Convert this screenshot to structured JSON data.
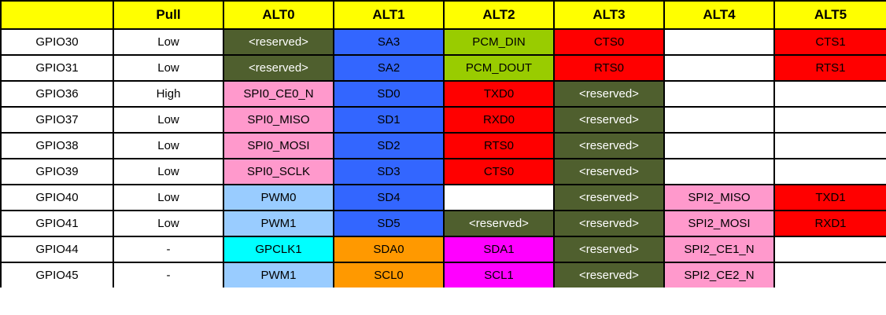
{
  "table": {
    "headers": [
      "",
      "Pull",
      "ALT0",
      "ALT1",
      "ALT2",
      "ALT3",
      "ALT4",
      "ALT5"
    ],
    "rows": [
      {
        "gpio": "GPIO30",
        "pull": "Low",
        "alts": [
          "<reserved>",
          "SA3",
          "PCM_DIN",
          "CTS0",
          "",
          "CTS1"
        ]
      },
      {
        "gpio": "GPIO31",
        "pull": "Low",
        "alts": [
          "<reserved>",
          "SA2",
          "PCM_DOUT",
          "RTS0",
          "",
          "RTS1"
        ]
      },
      {
        "gpio": "GPIO36",
        "pull": "High",
        "alts": [
          "SPI0_CE0_N",
          "SD0",
          "TXD0",
          "<reserved>",
          "",
          ""
        ]
      },
      {
        "gpio": "GPIO37",
        "pull": "Low",
        "alts": [
          "SPI0_MISO",
          "SD1",
          "RXD0",
          "<reserved>",
          "",
          ""
        ]
      },
      {
        "gpio": "GPIO38",
        "pull": "Low",
        "alts": [
          "SPI0_MOSI",
          "SD2",
          "RTS0",
          "<reserved>",
          "",
          ""
        ]
      },
      {
        "gpio": "GPIO39",
        "pull": "Low",
        "alts": [
          "SPI0_SCLK",
          "SD3",
          "CTS0",
          "<reserved>",
          "",
          ""
        ]
      },
      {
        "gpio": "GPIO40",
        "pull": "Low",
        "alts": [
          "PWM0",
          "SD4",
          "",
          "<reserved>",
          "SPI2_MISO",
          "TXD1"
        ]
      },
      {
        "gpio": "GPIO41",
        "pull": "Low",
        "alts": [
          "PWM1",
          "SD5",
          "<reserved>",
          "<reserved>",
          "SPI2_MOSI",
          "RXD1"
        ]
      },
      {
        "gpio": "GPIO44",
        "pull": "-",
        "alts": [
          "GPCLK1",
          "SDA0",
          "SDA1",
          "<reserved>",
          "SPI2_CE1_N",
          ""
        ]
      },
      {
        "gpio": "GPIO45",
        "pull": "-",
        "alts": [
          "PWM1",
          "SCL0",
          "SCL1",
          "<reserved>",
          "SPI2_CE2_N",
          ""
        ]
      }
    ]
  },
  "colors": {
    "header": "#ffff00",
    "reserved": "#4f5f2e",
    "sd": "#3366ff",
    "pcm": "#99cc00",
    "uart": "#ff0000",
    "spi": "#ff99cc",
    "pwm": "#99ccff",
    "gpclk": "#00ffff",
    "i2c0": "#ff9900",
    "i2c1": "#ff00ff",
    "empty": "#ffffff"
  },
  "cell_colors": [
    [
      "reserved",
      "sd",
      "pcm",
      "uart",
      "empty",
      "uart"
    ],
    [
      "reserved",
      "sd",
      "pcm",
      "uart",
      "empty",
      "uart"
    ],
    [
      "spi",
      "sd",
      "uart",
      "reserved",
      "empty",
      "empty"
    ],
    [
      "spi",
      "sd",
      "uart",
      "reserved",
      "empty",
      "empty"
    ],
    [
      "spi",
      "sd",
      "uart",
      "reserved",
      "empty",
      "empty"
    ],
    [
      "spi",
      "sd",
      "uart",
      "reserved",
      "empty",
      "empty"
    ],
    [
      "pwm",
      "sd",
      "empty",
      "reserved",
      "spi",
      "uart"
    ],
    [
      "pwm",
      "sd",
      "reserved",
      "reserved",
      "spi",
      "uart"
    ],
    [
      "gpclk",
      "i2c0",
      "i2c1",
      "reserved",
      "spi",
      "empty"
    ],
    [
      "pwm",
      "i2c0",
      "i2c1",
      "reserved",
      "spi",
      "empty"
    ]
  ]
}
